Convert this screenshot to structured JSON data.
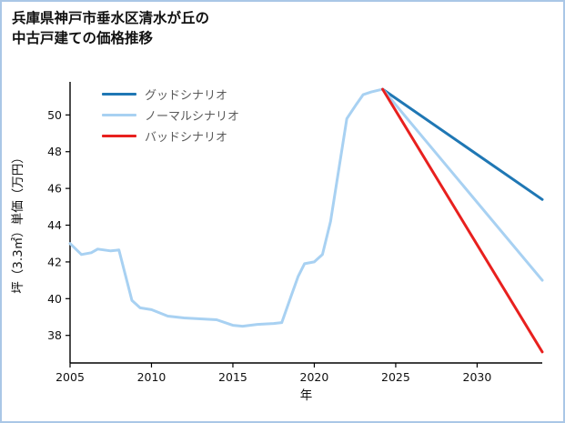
{
  "page": {
    "title_line1": "兵庫県神戸市垂水区清水が丘の",
    "title_line2": "中古戸建ての価格推移"
  },
  "chart_data": {
    "type": "line",
    "title": "兵庫県神戸市垂水区清水が丘の中古戸建ての価格推移",
    "xlabel": "年",
    "ylabel": "坪（3.3㎡）単価（万円）",
    "xlim": [
      2005,
      2034
    ],
    "ylim": [
      36.5,
      51.8
    ],
    "xticks": [
      2005,
      2010,
      2015,
      2020,
      2025,
      2030
    ],
    "yticks": [
      38,
      40,
      42,
      44,
      46,
      48,
      50
    ],
    "grid": false,
    "legend_position": "upper-left",
    "legend": [
      {
        "label": "グッドシナリオ",
        "color": "#1f77b4"
      },
      {
        "label": "ノーマルシナリオ",
        "color": "#a8d1f2"
      },
      {
        "label": "バッドシナリオ",
        "color": "#e8201e"
      }
    ],
    "series": [
      {
        "id": "actual",
        "color": "#a8d1f2",
        "width": 3,
        "x": [
          2005,
          2005.7,
          2006.3,
          2006.7,
          2007.5,
          2008,
          2008.8,
          2009.3,
          2010,
          2011,
          2012,
          2013,
          2014,
          2015,
          2015.6,
          2016.5,
          2017.5,
          2018,
          2018.6,
          2019,
          2019.4,
          2020,
          2020.5,
          2021,
          2022,
          2022.6,
          2023,
          2023.5,
          2024.2
        ],
        "values": [
          43.0,
          42.4,
          42.5,
          42.7,
          42.6,
          42.65,
          39.9,
          39.5,
          39.4,
          39.05,
          38.95,
          38.9,
          38.85,
          38.55,
          38.5,
          38.6,
          38.65,
          38.7,
          40.2,
          41.2,
          41.9,
          42.0,
          42.4,
          44.2,
          49.8,
          50.6,
          51.1,
          51.25,
          51.4
        ]
      },
      {
        "id": "good-scenario",
        "name": "グッドシナリオ",
        "color": "#1f77b4",
        "width": 3,
        "x": [
          2024.2,
          2034
        ],
        "values": [
          51.4,
          45.4
        ]
      },
      {
        "id": "normal-scenario",
        "name": "ノーマルシナリオ",
        "color": "#a8d1f2",
        "width": 3,
        "x": [
          2024.2,
          2034
        ],
        "values": [
          51.4,
          41.0
        ]
      },
      {
        "id": "bad-scenario",
        "name": "バッドシナリオ",
        "color": "#e8201e",
        "width": 3,
        "x": [
          2024.2,
          2034
        ],
        "values": [
          51.4,
          37.1
        ]
      }
    ]
  }
}
